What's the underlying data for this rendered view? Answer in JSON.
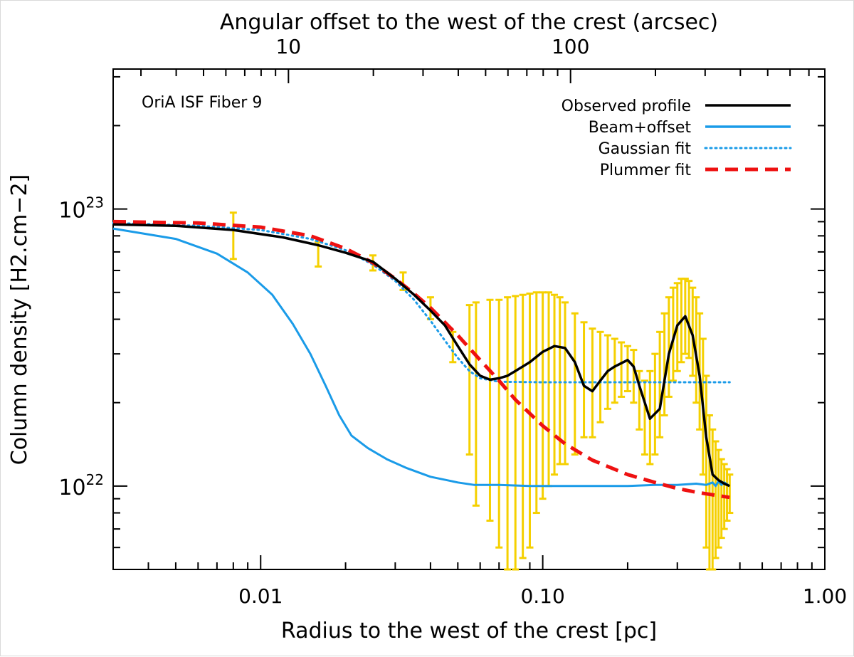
{
  "chart_data": {
    "type": "line",
    "scale": "log-log",
    "annotation": "OriA ISF Fiber 9",
    "xlabel": "Radius to the west of the crest [pc]",
    "ylabel": "Column density [H2.cm−2]",
    "x2label": "Angular offset to the west of the crest (arcsec)",
    "xlim": [
      0.003,
      1.0
    ],
    "ylim": [
      5e+21,
      3.2e+23
    ],
    "x2_tick_labels": [
      {
        "label": "10",
        "value": 10
      },
      {
        "label": "100",
        "value": 100
      }
    ],
    "arcsec_per_pc": 797,
    "x_tick_labels": [
      {
        "label": "0.01",
        "value": 0.01
      },
      {
        "label": "0.10",
        "value": 0.1
      },
      {
        "label": "1.00",
        "value": 1.0
      }
    ],
    "y_tick_labels": [
      {
        "base": "10",
        "exp": "22",
        "value": 1e+22
      },
      {
        "base": "10",
        "exp": "23",
        "value": 1e+23
      }
    ],
    "legend": [
      {
        "label": "Observed profile",
        "color": "#000000",
        "style": "solid"
      },
      {
        "label": "Beam+offset",
        "color": "#1a9be8",
        "style": "solid"
      },
      {
        "label": "Gaussian fit",
        "color": "#1a9be8",
        "style": "dotted"
      },
      {
        "label": "Plummer fit",
        "color": "#ee1111",
        "style": "dashed"
      }
    ],
    "errorbar_color": "#f5d000",
    "series": [
      {
        "name": "Observed profile",
        "x": [
          0.003,
          0.005,
          0.008,
          0.012,
          0.016,
          0.02,
          0.025,
          0.03,
          0.035,
          0.04,
          0.045,
          0.05,
          0.055,
          0.06,
          0.065,
          0.07,
          0.075,
          0.08,
          0.09,
          0.1,
          0.11,
          0.12,
          0.13,
          0.14,
          0.15,
          0.16,
          0.17,
          0.18,
          0.2,
          0.21,
          0.22,
          0.24,
          0.26,
          0.28,
          0.3,
          0.32,
          0.34,
          0.36,
          0.38,
          0.4,
          0.42,
          0.44,
          0.46
        ],
        "y": [
          8.8e+22,
          8.7e+22,
          8.4e+22,
          7.9e+22,
          7.4e+22,
          6.95e+22,
          6.45e+22,
          5.6e+22,
          4.9e+22,
          4.3e+22,
          3.8e+22,
          3.2e+22,
          2.75e+22,
          2.5e+22,
          2.42e+22,
          2.45e+22,
          2.5e+22,
          2.6e+22,
          2.8e+22,
          3.05e+22,
          3.2e+22,
          3.15e+22,
          2.8e+22,
          2.3e+22,
          2.2e+22,
          2.4e+22,
          2.6e+22,
          2.7e+22,
          2.85e+22,
          2.7e+22,
          2.3e+22,
          1.75e+22,
          1.9e+22,
          3e+22,
          3.8e+22,
          4.1e+22,
          3.5e+22,
          2.5e+22,
          1.5e+22,
          1.1e+22,
          1.05e+22,
          1.02e+22,
          1e+22
        ]
      },
      {
        "name": "Beam+offset",
        "x": [
          0.003,
          0.005,
          0.007,
          0.009,
          0.011,
          0.013,
          0.015,
          0.017,
          0.019,
          0.021,
          0.024,
          0.028,
          0.033,
          0.04,
          0.05,
          0.057,
          0.07,
          0.09,
          0.12,
          0.15,
          0.2,
          0.25,
          0.3,
          0.35,
          0.38,
          0.4,
          0.41,
          0.42,
          0.43,
          0.44,
          0.46
        ],
        "y": [
          8.5e+22,
          7.8e+22,
          6.9e+22,
          5.9e+22,
          4.9e+22,
          3.85e+22,
          3e+22,
          2.3e+22,
          1.8e+22,
          1.52e+22,
          1.37e+22,
          1.25e+22,
          1.16e+22,
          1.08e+22,
          1.03e+22,
          1.01e+22,
          1.01e+22,
          1e+22,
          1e+22,
          1e+22,
          1e+22,
          1.01e+22,
          1.01e+22,
          1.02e+22,
          1.01e+22,
          1.03e+22,
          1e+22,
          1.04e+22,
          1.01e+22,
          1.03e+22,
          1e+22
        ]
      },
      {
        "name": "Gaussian fit",
        "x": [
          0.003,
          0.006,
          0.01,
          0.015,
          0.02,
          0.025,
          0.03,
          0.035,
          0.04,
          0.045,
          0.05,
          0.055,
          0.06,
          0.07,
          0.1,
          0.2,
          0.3,
          0.46
        ],
        "y": [
          8.9e+22,
          8.7e+22,
          8.4e+22,
          7.8e+22,
          7.1e+22,
          6.3e+22,
          5.5e+22,
          4.7e+22,
          3.95e+22,
          3.35e+22,
          2.9e+22,
          2.6e+22,
          2.45e+22,
          2.38e+22,
          2.37e+22,
          2.37e+22,
          2.37e+22,
          2.37e+22
        ]
      },
      {
        "name": "Plummer fit",
        "x": [
          0.003,
          0.006,
          0.01,
          0.015,
          0.02,
          0.025,
          0.03,
          0.035,
          0.04,
          0.05,
          0.06,
          0.07,
          0.08,
          0.1,
          0.12,
          0.15,
          0.2,
          0.25,
          0.3,
          0.35,
          0.4,
          0.46
        ],
        "y": [
          9e+22,
          8.9e+22,
          8.6e+22,
          8e+22,
          7.2e+22,
          6.4e+22,
          5.6e+22,
          4.95e+22,
          4.4e+22,
          3.5e+22,
          2.85e+22,
          2.4e+22,
          2.05e+22,
          1.65e+22,
          1.42e+22,
          1.24e+22,
          1.1e+22,
          1.03e+22,
          9.8e+21,
          9.5e+21,
          9.3e+21,
          9.1e+21
        ]
      }
    ],
    "errorbars": {
      "x": [
        0.008,
        0.016,
        0.025,
        0.032,
        0.04,
        0.048,
        0.055,
        0.058,
        0.065,
        0.07,
        0.075,
        0.08,
        0.085,
        0.09,
        0.095,
        0.1,
        0.105,
        0.11,
        0.115,
        0.12,
        0.13,
        0.14,
        0.15,
        0.16,
        0.17,
        0.18,
        0.19,
        0.2,
        0.21,
        0.22,
        0.23,
        0.24,
        0.25,
        0.26,
        0.27,
        0.28,
        0.29,
        0.3,
        0.31,
        0.32,
        0.33,
        0.34,
        0.35,
        0.36,
        0.37,
        0.38,
        0.39,
        0.4,
        0.41,
        0.42,
        0.43,
        0.44,
        0.45,
        0.46
      ],
      "lo": [
        6.6e+22,
        6.2e+22,
        6e+22,
        5.1e+22,
        4e+22,
        2.8e+22,
        1.3e+22,
        8.5e+21,
        7.5e+21,
        6e+21,
        5e+21,
        5e+21,
        5.5e+21,
        6e+21,
        8e+21,
        9e+21,
        1e+22,
        1.1e+22,
        1.2e+22,
        1.2e+22,
        1.3e+22,
        1.5e+22,
        1.5e+22,
        1.7e+22,
        1.9e+22,
        2e+22,
        2.1e+22,
        2.2e+22,
        2e+22,
        1.6e+22,
        1.3e+22,
        1.2e+22,
        1.3e+22,
        1.5e+22,
        1.8e+22,
        2.1e+22,
        2.4e+22,
        2.6e+22,
        2.8e+22,
        3e+22,
        2.9e+22,
        2.5e+22,
        2e+22,
        1.6e+22,
        1.1e+22,
        6e+21,
        5e+21,
        5e+21,
        5.5e+21,
        6e+21,
        6.5e+21,
        7e+21,
        7.5e+21,
        8e+21
      ],
      "hi": [
        9.7e+22,
        7.6e+22,
        6.8e+22,
        5.9e+22,
        4.8e+22,
        3.6e+22,
        4.5e+22,
        4.6e+22,
        4.7e+22,
        4.7e+22,
        4.8e+22,
        4.85e+22,
        4.9e+22,
        4.95e+22,
        5e+22,
        5e+22,
        5e+22,
        4.9e+22,
        4.8e+22,
        4.6e+22,
        4.2e+22,
        3.9e+22,
        3.7e+22,
        3.6e+22,
        3.5e+22,
        3.4e+22,
        3.3e+22,
        3.2e+22,
        3.1e+22,
        2.6e+22,
        2.4e+22,
        2.6e+22,
        3e+22,
        3.6e+22,
        4.2e+22,
        4.8e+22,
        5.2e+22,
        5.4e+22,
        5.6e+22,
        5.6e+22,
        5.5e+22,
        5.2e+22,
        4.8e+22,
        4.2e+22,
        3.4e+22,
        2.5e+22,
        1.8e+22,
        1.6e+22,
        1.45e+22,
        1.35e+22,
        1.25e+22,
        1.2e+22,
        1.15e+22,
        1.1e+22
      ]
    }
  }
}
